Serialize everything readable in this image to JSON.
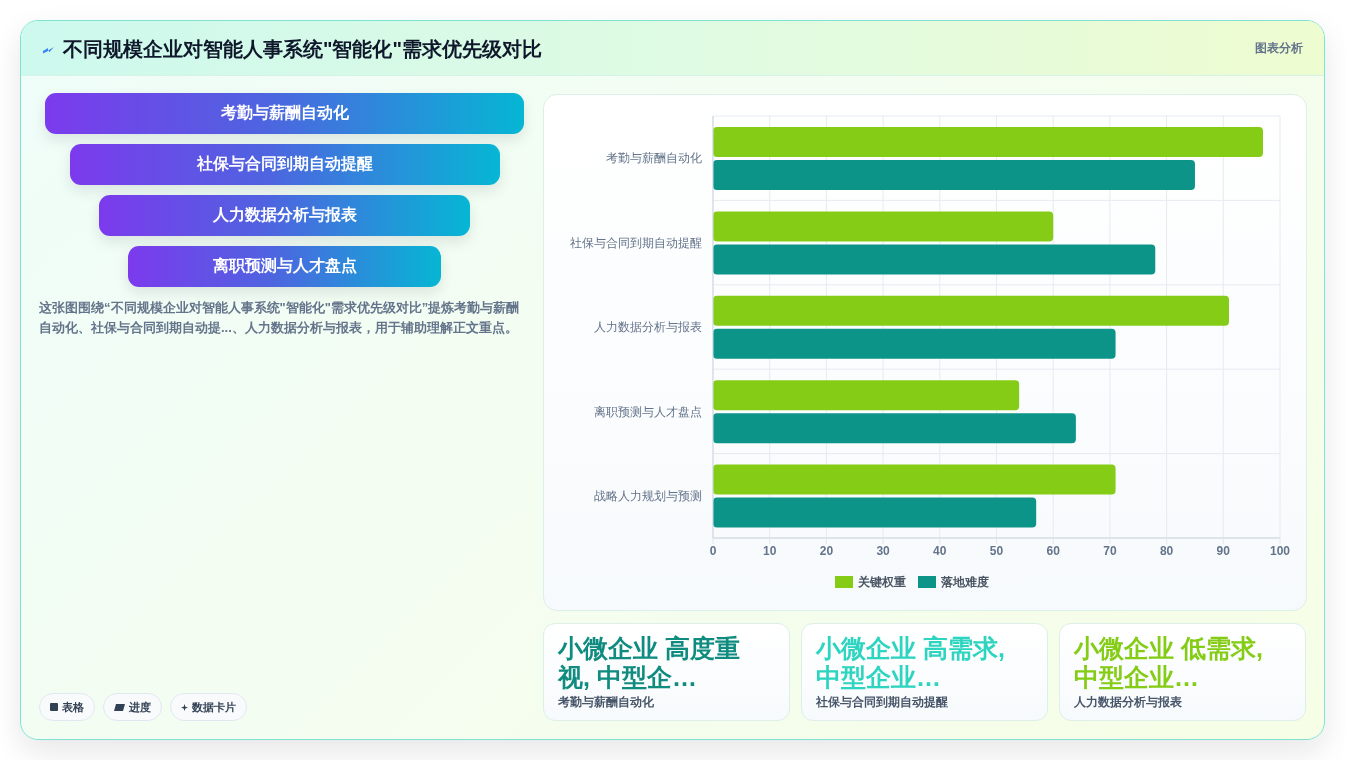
{
  "chart_data": {
    "type": "bar",
    "orientation": "horizontal",
    "title": "不同规模企业对智能人事系统\"智能化\"需求优先级对比",
    "categories": [
      "考勤与薪酬自动化",
      "社保与合同到期自动提醒",
      "人力数据分析与报表",
      "离职预测与人才盘点",
      "战略人力规划与预测"
    ],
    "series": [
      {
        "name": "关键权重",
        "color": "#84cc16",
        "values": [
          97,
          60,
          91,
          54,
          71
        ]
      },
      {
        "name": "落地难度",
        "color": "#0d9488",
        "values": [
          85,
          78,
          71,
          64,
          57
        ]
      }
    ],
    "xlim": [
      0,
      100
    ],
    "xticks": [
      0,
      10,
      20,
      30,
      40,
      50,
      60,
      70,
      80,
      90,
      100
    ],
    "grid": true,
    "legend": "bottom",
    "annotations": [
      "图表分析",
      "考勤与薪酬自动化",
      "社保与合同到期自动提醒",
      "人力数据分析与报表",
      "离职预测与人才盘点",
      "这张图围绕“不同规模企业对智能人事系统\"智能化\"需求优先级对比”提炼考勤与薪酬自动化、社保与合同到期自动提...、人力数据分析与报表，用于辅助理解正文重点。",
      "小微企业 高度重视, 中型企…",
      "考勤与薪酬自动化",
      "小微企业 高需求, 中型企业…",
      "社保与合同到期自动提醒",
      "小微企业 低需求, 中型企业…",
      "人力数据分析与报表",
      "表格",
      "进度",
      "数据卡片"
    ]
  }
}
